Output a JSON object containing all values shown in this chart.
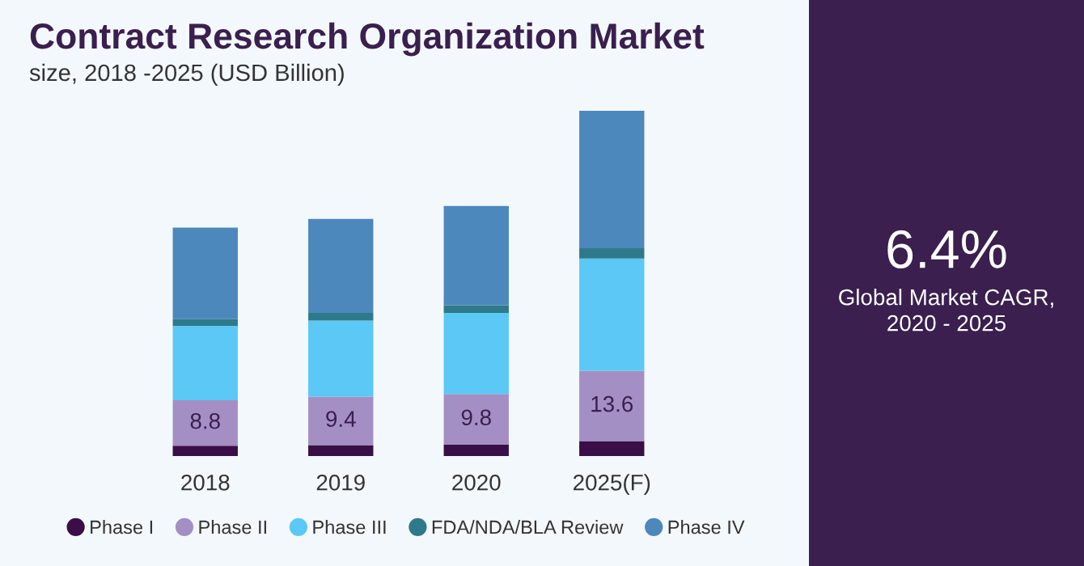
{
  "chart_data": [
    {
      "type": "bar",
      "title": "Contract Research Organization Market",
      "subtitle": "size, 2018 -2025 (USD Billion)",
      "categories": [
        "2018",
        "2019",
        "2020",
        "2025(F)"
      ],
      "stacked": true,
      "legend": "bottom",
      "grid": false,
      "series": [
        {
          "name": "Phase I",
          "color": "#3a0f47",
          "values": [
            2.0,
            2.1,
            2.2,
            2.9
          ]
        },
        {
          "name": "Phase II",
          "color": "#a48fc4",
          "values": [
            8.8,
            9.4,
            9.8,
            13.6
          ],
          "value_labels": [
            "8.8",
            "9.4",
            "9.8",
            "13.6"
          ]
        },
        {
          "name": "Phase III",
          "color": "#5bc8f5",
          "values": [
            14.4,
            14.7,
            15.7,
            21.7
          ]
        },
        {
          "name": "FDA/NDA/BLA Review",
          "color": "#2e7a8a",
          "values": [
            1.3,
            1.5,
            1.5,
            2.0
          ]
        },
        {
          "name": "Phase IV",
          "color": "#4d88bc",
          "values": [
            17.7,
            18.2,
            19.2,
            26.6
          ]
        }
      ]
    },
    {
      "type": "other",
      "title": "6.4%",
      "subtitle": "Global Market CAGR,\n2020 - 2025"
    }
  ]
}
